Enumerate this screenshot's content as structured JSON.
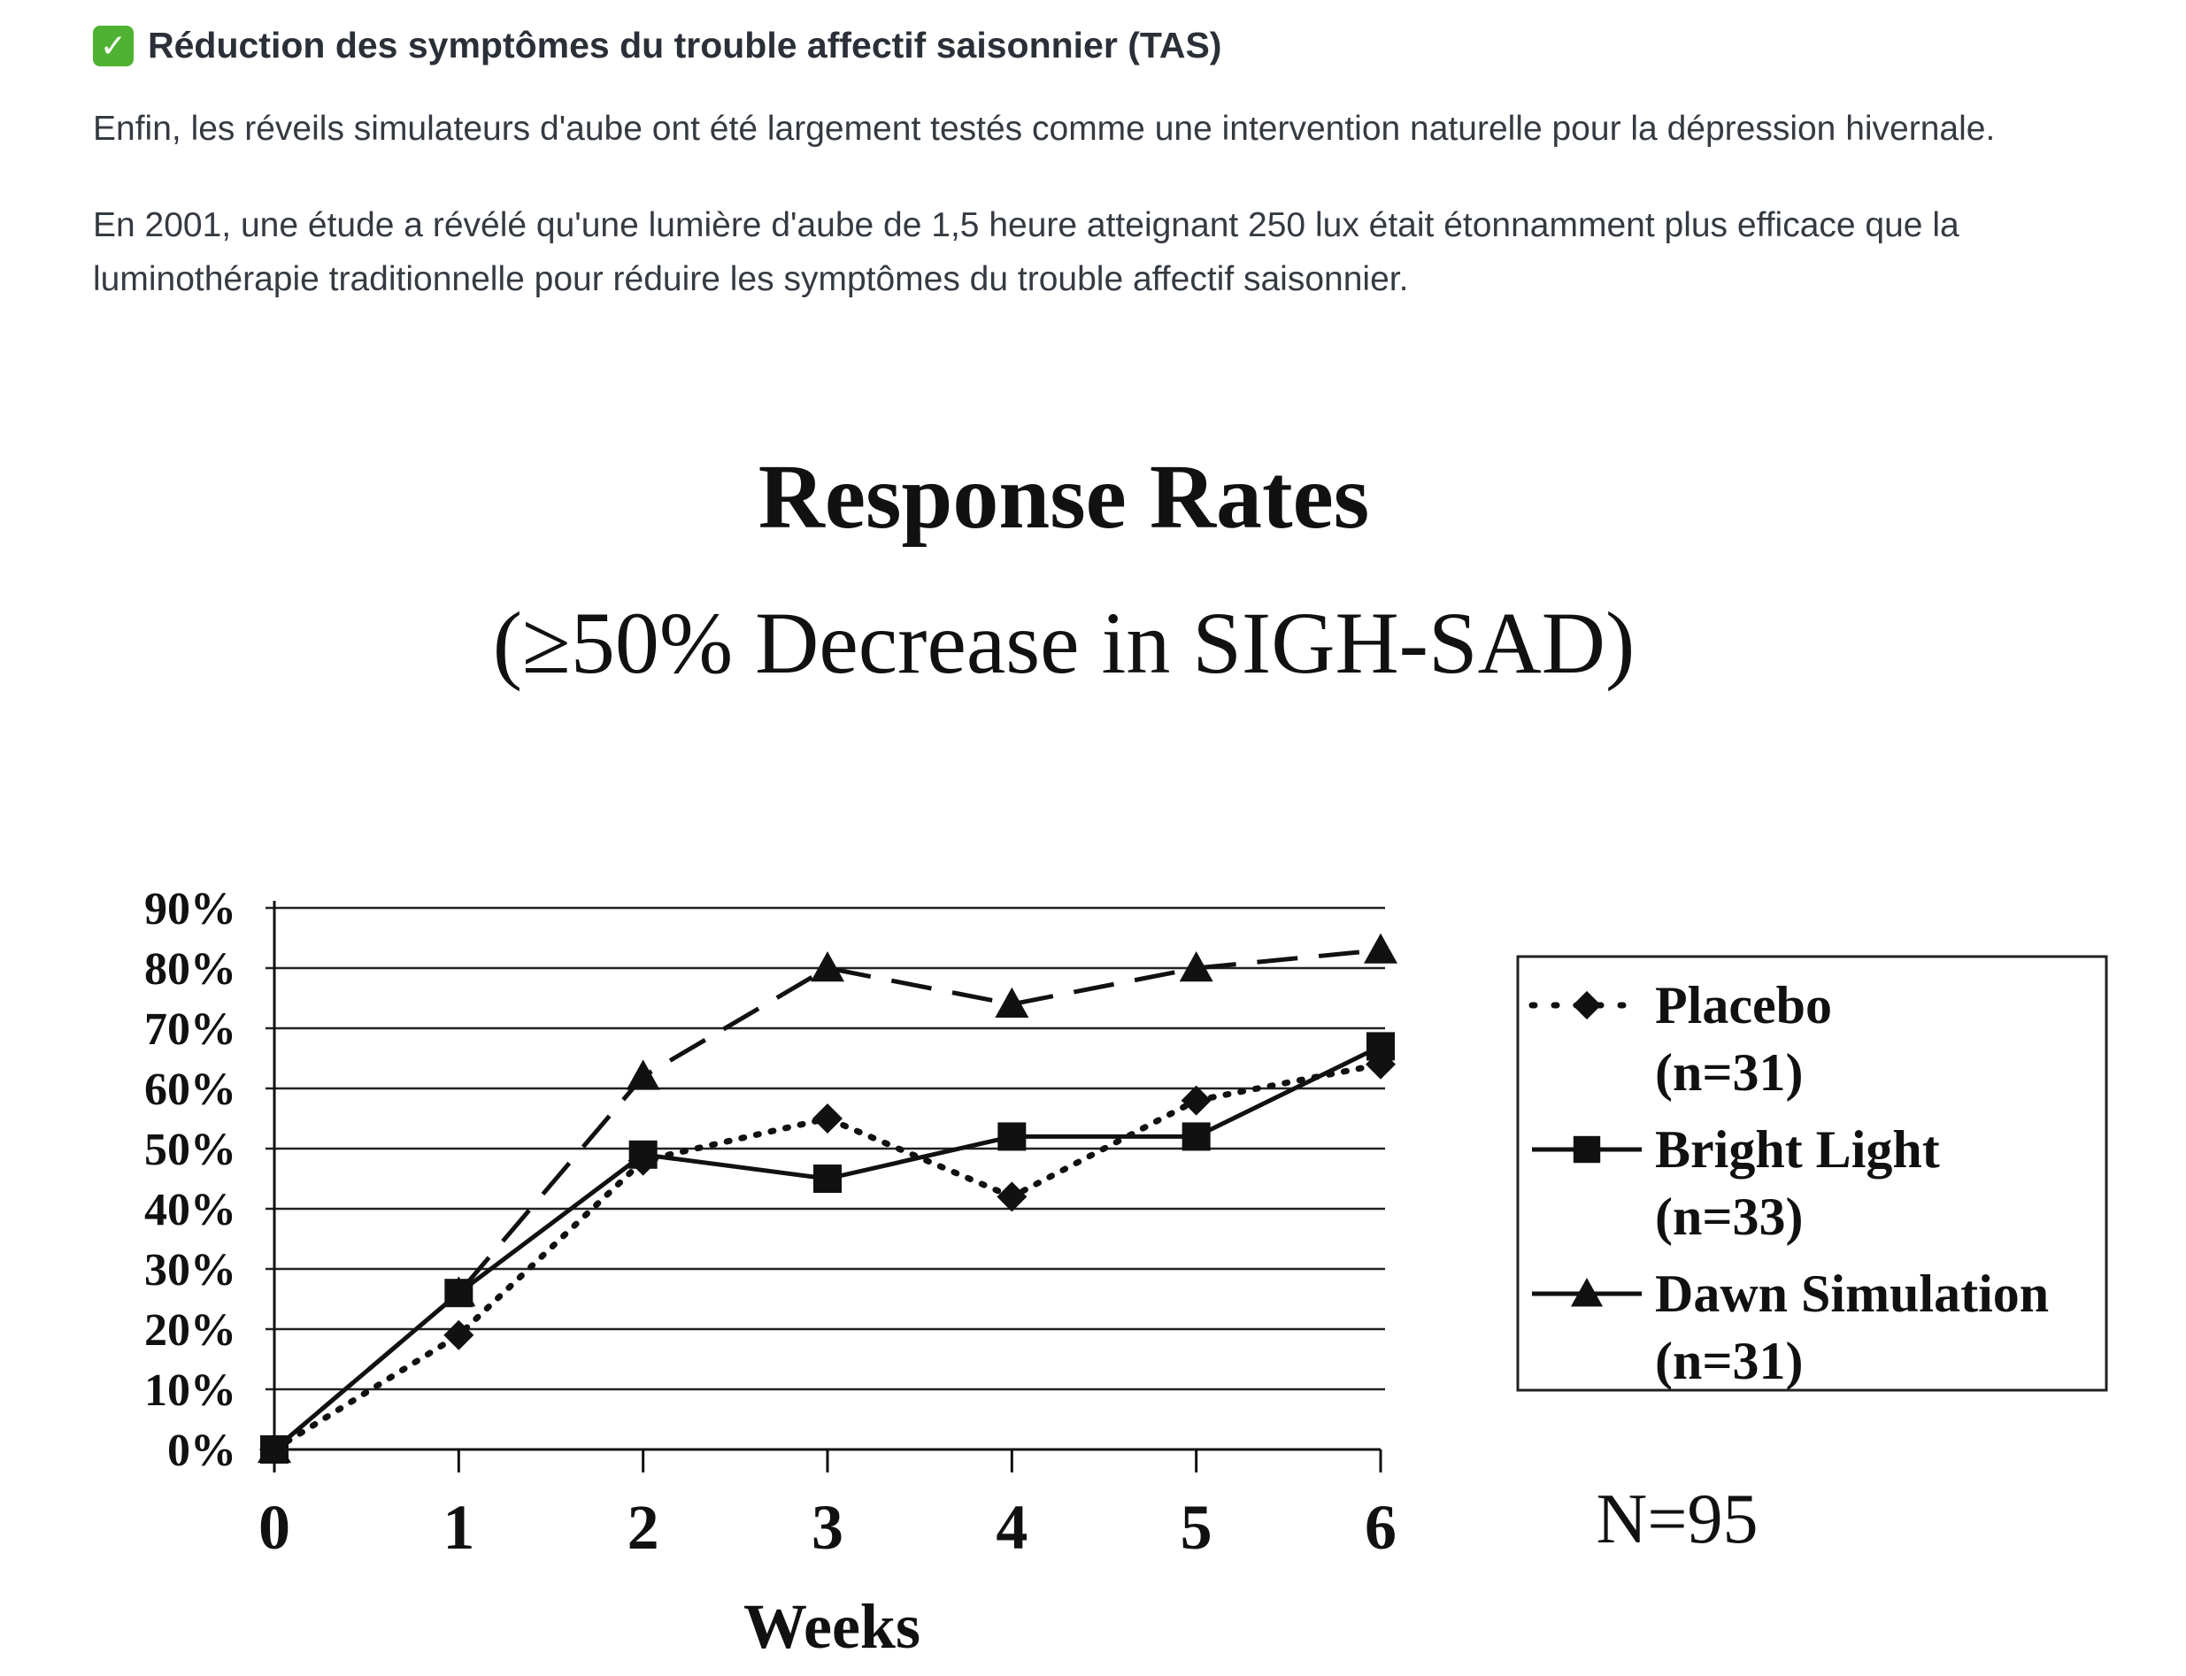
{
  "heading": {
    "icon": "check-mark-icon",
    "icon_glyph": "✓",
    "text": "Réduction des symptômes du trouble affectif saisonnier (TAS)"
  },
  "paragraphs": [
    "Enfin, les réveils simulateurs d'aube ont été largement testés comme une intervention naturelle pour la dépression hivernale.",
    "En 2001, une étude a révélé qu'une lumière d'aube de 1,5 heure atteignant 250 lux était étonnamment plus efficace que la luminothérapie traditionnelle pour réduire les symptômes du trouble affectif saisonnier."
  ],
  "chart_data": {
    "type": "line",
    "title": "Response Rates",
    "subtitle": "(≥50% Decrease in SIGH-SAD)",
    "xlabel": "Weeks",
    "ylabel": "",
    "x": [
      0,
      1,
      2,
      3,
      4,
      5,
      6
    ],
    "xticks": [
      "0",
      "1",
      "2",
      "3",
      "4",
      "5",
      "6"
    ],
    "yticks": [
      "0%",
      "10%",
      "20%",
      "30%",
      "40%",
      "50%",
      "60%",
      "70%",
      "80%",
      "90%"
    ],
    "ylim": [
      0,
      90
    ],
    "grid": true,
    "legend_position": "right",
    "annotation": "N=95",
    "series": [
      {
        "name": "Placebo",
        "n_label": "(n=31)",
        "marker": "diamond",
        "style": "dotted",
        "values": [
          0,
          19,
          48,
          55,
          42,
          58,
          64
        ]
      },
      {
        "name": "Bright Light",
        "n_label": "(n=33)",
        "marker": "square",
        "style": "solid",
        "values": [
          0,
          26,
          49,
          45,
          52,
          52,
          67
        ]
      },
      {
        "name": "Dawn Simulation",
        "n_label": "(n=31)",
        "marker": "triangle",
        "style": "dashed",
        "values": [
          0,
          26,
          62,
          80,
          74,
          80,
          83
        ]
      }
    ]
  }
}
